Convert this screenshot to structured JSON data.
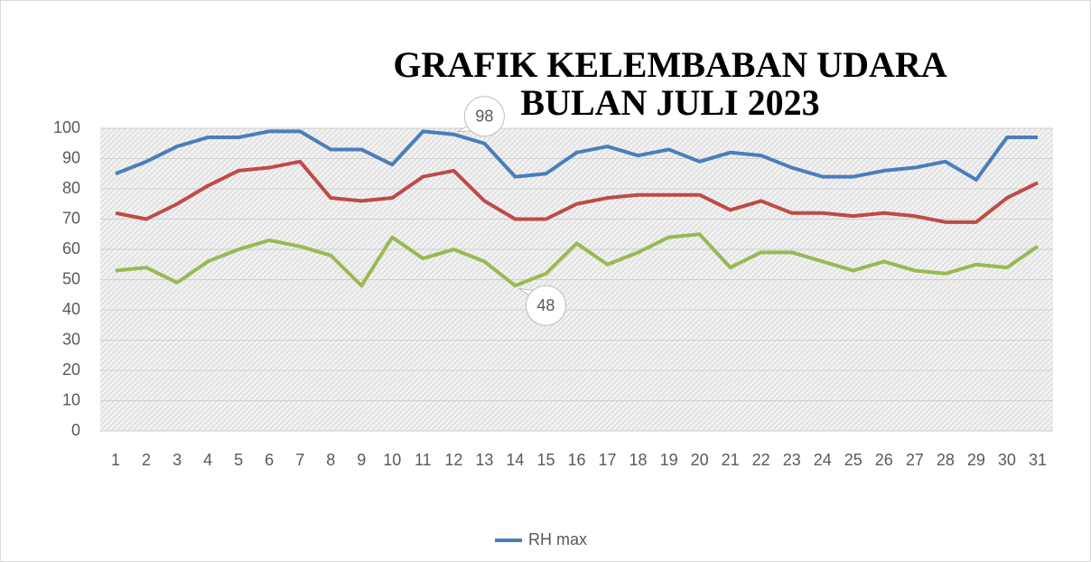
{
  "chart_data": {
    "type": "line",
    "title": [
      "GRAFIK KELEMBABAN UDARA",
      "BULAN JULI 2023"
    ],
    "categories": [
      "1",
      "2",
      "3",
      "4",
      "5",
      "6",
      "7",
      "8",
      "9",
      "10",
      "11",
      "12",
      "13",
      "14",
      "15",
      "16",
      "17",
      "18",
      "19",
      "20",
      "21",
      "22",
      "23",
      "24",
      "25",
      "26",
      "27",
      "28",
      "29",
      "30",
      "31"
    ],
    "series": [
      {
        "name": "RH max",
        "color": "#4a7ebb",
        "values": [
          85,
          89,
          94,
          97,
          97,
          99,
          99,
          93,
          93,
          88,
          99,
          98,
          95,
          84,
          85,
          92,
          94,
          91,
          93,
          89,
          92,
          91,
          87,
          84,
          84,
          86,
          87,
          89,
          83,
          97,
          97
        ]
      },
      {
        "color": "#be4b48",
        "values": [
          72,
          70,
          75,
          81,
          86,
          87,
          89,
          77,
          76,
          77,
          84,
          86,
          76,
          70,
          70,
          75,
          77,
          78,
          78,
          78,
          73,
          76,
          72,
          72,
          71,
          72,
          71,
          69,
          69,
          77,
          82
        ]
      },
      {
        "color": "#98b954",
        "values": [
          53,
          54,
          49,
          56,
          60,
          63,
          61,
          58,
          48,
          64,
          57,
          60,
          56,
          48,
          52,
          62,
          55,
          59,
          64,
          65,
          54,
          59,
          59,
          56,
          53,
          56,
          53,
          52,
          55,
          54,
          61
        ]
      }
    ],
    "data_labels": [
      {
        "series": 0,
        "index": 11
      },
      {
        "series": 2,
        "index": 13
      }
    ],
    "ylim": [
      0,
      100
    ],
    "yticks": [
      0,
      10,
      20,
      30,
      40,
      50,
      60,
      70,
      80,
      90,
      100
    ],
    "grid": true,
    "legend": "bottom"
  }
}
